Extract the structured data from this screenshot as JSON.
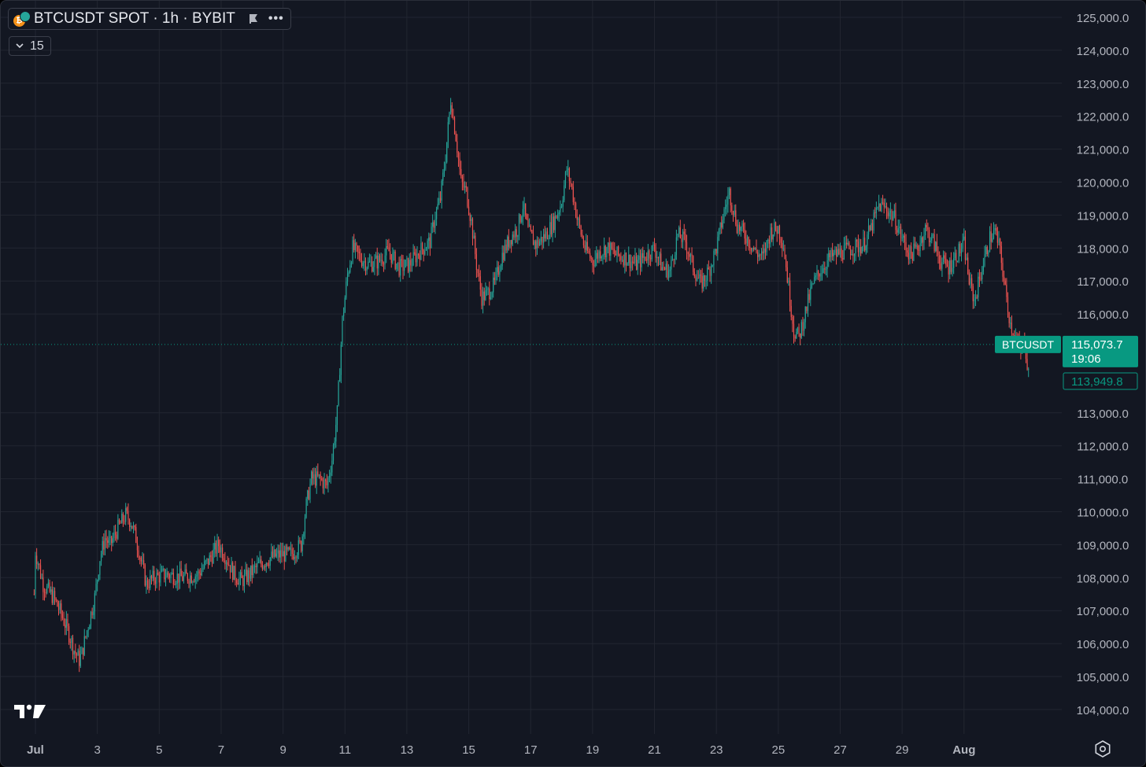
{
  "header": {
    "symbol_title": "BTCUSDT SPOT · 1h · BYBIT",
    "collapse_count": "15"
  },
  "price_tags": {
    "symbol": "BTCUSDT",
    "last_price": "115,073.7",
    "countdown": "19:06",
    "low_price": "113,949.8"
  },
  "icons": [
    "btc-usdt-icon",
    "flag-icon",
    "more-icon",
    "chevron-down-icon",
    "tradingview-logo-icon",
    "settings-icon"
  ],
  "colors": {
    "background": "#131722",
    "up": "#26a69a",
    "down": "#ef5350",
    "grid": "#222631",
    "axis_text": "#b2b5be",
    "last_price_tag": "#089981"
  },
  "chart_data": {
    "type": "candlestick",
    "timeframe": "1h",
    "y_axis": {
      "ticks": [
        "125,000.0",
        "124,000.0",
        "123,000.0",
        "122,000.0",
        "121,000.0",
        "120,000.0",
        "119,000.0",
        "118,000.0",
        "117,000.0",
        "116,000.0",
        "113,000.0",
        "112,000.0",
        "111,000.0",
        "110,000.0",
        "109,000.0",
        "108,000.0",
        "107,000.0",
        "106,000.0",
        "105,000.0",
        "104,000.0"
      ],
      "ylim": [
        103400,
        125300
      ],
      "position": "right"
    },
    "x_axis": {
      "ticks": [
        "Jul",
        "3",
        "5",
        "7",
        "9",
        "11",
        "13",
        "15",
        "17",
        "19",
        "21",
        "23",
        "25",
        "27",
        "29",
        "Aug"
      ],
      "xlim": [
        "2025-07-01T00:00",
        "2025-08-02T04:00"
      ]
    },
    "last_price": 115073.7,
    "low_marker": 113949.8,
    "grid": true,
    "path": [
      [
        "2025-06-30T23:00",
        107500
      ],
      [
        "2025-07-01T00:00",
        108800
      ],
      [
        "2025-07-01T06:00",
        107800
      ],
      [
        "2025-07-01T14:00",
        107400
      ],
      [
        "2025-07-01T20:00",
        106900
      ],
      [
        "2025-07-02T02:00",
        106300
      ],
      [
        "2025-07-02T06:00",
        105800
      ],
      [
        "2025-07-02T10:00",
        105500
      ],
      [
        "2025-07-02T12:00",
        105700
      ],
      [
        "2025-07-02T16:00",
        106400
      ],
      [
        "2025-07-02T22:00",
        107400
      ],
      [
        "2025-07-03T02:00",
        108600
      ],
      [
        "2025-07-03T06:00",
        109200
      ],
      [
        "2025-07-03T10:00",
        109000
      ],
      [
        "2025-07-03T16:00",
        109500
      ],
      [
        "2025-07-03T22:00",
        109900
      ],
      [
        "2025-07-04T02:00",
        109700
      ],
      [
        "2025-07-04T06:00",
        109200
      ],
      [
        "2025-07-04T10:00",
        108500
      ],
      [
        "2025-07-04T14:00",
        107800
      ],
      [
        "2025-07-04T20:00",
        108000
      ],
      [
        "2025-07-05T06:00",
        108100
      ],
      [
        "2025-07-05T18:00",
        108000
      ],
      [
        "2025-07-06T06:00",
        108100
      ],
      [
        "2025-07-06T14:00",
        108500
      ],
      [
        "2025-07-06T22:00",
        109000
      ],
      [
        "2025-07-07T04:00",
        108600
      ],
      [
        "2025-07-07T10:00",
        108100
      ],
      [
        "2025-07-07T16:00",
        107900
      ],
      [
        "2025-07-07T22:00",
        108100
      ],
      [
        "2025-07-08T06:00",
        108400
      ],
      [
        "2025-07-08T14:00",
        108600
      ],
      [
        "2025-07-08T22:00",
        108700
      ],
      [
        "2025-07-09T06:00",
        108700
      ],
      [
        "2025-07-09T14:00",
        109000
      ],
      [
        "2025-07-09T18:00",
        110200
      ],
      [
        "2025-07-09T22:00",
        111000
      ],
      [
        "2025-07-10T04:00",
        111000
      ],
      [
        "2025-07-10T10:00",
        110800
      ],
      [
        "2025-07-10T14:00",
        111600
      ],
      [
        "2025-07-10T18:00",
        113000
      ],
      [
        "2025-07-10T22:00",
        115800
      ],
      [
        "2025-07-11T02:00",
        117200
      ],
      [
        "2025-07-11T06:00",
        118000
      ],
      [
        "2025-07-11T12:00",
        117700
      ],
      [
        "2025-07-11T18:00",
        117500
      ],
      [
        "2025-07-12T02:00",
        117600
      ],
      [
        "2025-07-12T10:00",
        117900
      ],
      [
        "2025-07-12T18:00",
        117400
      ],
      [
        "2025-07-13T02:00",
        117500
      ],
      [
        "2025-07-13T10:00",
        117900
      ],
      [
        "2025-07-13T18:00",
        118200
      ],
      [
        "2025-07-13T22:00",
        119000
      ],
      [
        "2025-07-14T02:00",
        119500
      ],
      [
        "2025-07-14T06:00",
        120800
      ],
      [
        "2025-07-14T10:00",
        122500
      ],
      [
        "2025-07-14T14:00",
        121400
      ],
      [
        "2025-07-14T18:00",
        120000
      ],
      [
        "2025-07-14T22:00",
        119700
      ],
      [
        "2025-07-15T02:00",
        118800
      ],
      [
        "2025-07-15T06:00",
        117500
      ],
      [
        "2025-07-15T10:00",
        116500
      ],
      [
        "2025-07-15T14:00",
        116600
      ],
      [
        "2025-07-15T20:00",
        116900
      ],
      [
        "2025-07-16T02:00",
        117800
      ],
      [
        "2025-07-16T08:00",
        118300
      ],
      [
        "2025-07-16T14:00",
        118600
      ],
      [
        "2025-07-16T18:00",
        119300
      ],
      [
        "2025-07-16T22:00",
        118500
      ],
      [
        "2025-07-17T04:00",
        118100
      ],
      [
        "2025-07-17T12:00",
        118400
      ],
      [
        "2025-07-17T18:00",
        118800
      ],
      [
        "2025-07-18T00:00",
        119400
      ],
      [
        "2025-07-18T04:00",
        120400
      ],
      [
        "2025-07-18T08:00",
        119800
      ],
      [
        "2025-07-18T12:00",
        118900
      ],
      [
        "2025-07-18T18:00",
        118000
      ],
      [
        "2025-07-19T00:00",
        117600
      ],
      [
        "2025-07-19T06:00",
        117900
      ],
      [
        "2025-07-19T12:00",
        118000
      ],
      [
        "2025-07-19T18:00",
        117800
      ],
      [
        "2025-07-20T02:00",
        117700
      ],
      [
        "2025-07-20T10:00",
        117500
      ],
      [
        "2025-07-20T18:00",
        117800
      ],
      [
        "2025-07-21T00:00",
        118000
      ],
      [
        "2025-07-21T06:00",
        117400
      ],
      [
        "2025-07-21T12:00",
        117300
      ],
      [
        "2025-07-21T18:00",
        118400
      ],
      [
        "2025-07-22T00:00",
        118200
      ],
      [
        "2025-07-22T06:00",
        117400
      ],
      [
        "2025-07-22T12:00",
        116900
      ],
      [
        "2025-07-22T18:00",
        117300
      ],
      [
        "2025-07-23T00:00",
        118000
      ],
      [
        "2025-07-23T06:00",
        119100
      ],
      [
        "2025-07-23T10:00",
        119700
      ],
      [
        "2025-07-23T16:00",
        118700
      ],
      [
        "2025-07-24T00:00",
        118300
      ],
      [
        "2025-07-24T06:00",
        117900
      ],
      [
        "2025-07-24T12:00",
        117700
      ],
      [
        "2025-07-24T18:00",
        118500
      ],
      [
        "2025-07-25T00:00",
        118600
      ],
      [
        "2025-07-25T04:00",
        118100
      ],
      [
        "2025-07-25T08:00",
        116800
      ],
      [
        "2025-07-25T12:00",
        115500
      ],
      [
        "2025-07-25T16:00",
        115300
      ],
      [
        "2025-07-25T20:00",
        115900
      ],
      [
        "2025-07-26T02:00",
        116800
      ],
      [
        "2025-07-26T08:00",
        117300
      ],
      [
        "2025-07-26T16:00",
        117700
      ],
      [
        "2025-07-27T02:00",
        117900
      ],
      [
        "2025-07-27T10:00",
        118000
      ],
      [
        "2025-07-27T18:00",
        118100
      ],
      [
        "2025-07-28T00:00",
        118600
      ],
      [
        "2025-07-28T06:00",
        119300
      ],
      [
        "2025-07-28T12:00",
        119200
      ],
      [
        "2025-07-28T18:00",
        118900
      ],
      [
        "2025-07-29T00:00",
        118300
      ],
      [
        "2025-07-29T06:00",
        117800
      ],
      [
        "2025-07-29T12:00",
        118000
      ],
      [
        "2025-07-29T18:00",
        118600
      ],
      [
        "2025-07-30T00:00",
        118200
      ],
      [
        "2025-07-30T06:00",
        117600
      ],
      [
        "2025-07-30T12:00",
        117400
      ],
      [
        "2025-07-30T18:00",
        117800
      ],
      [
        "2025-07-31T00:00",
        118100
      ],
      [
        "2025-07-31T04:00",
        117000
      ],
      [
        "2025-07-31T08:00",
        116400
      ],
      [
        "2025-07-31T14:00",
        117400
      ],
      [
        "2025-07-31T20:00",
        118300
      ],
      [
        "2025-08-01T00:00",
        118500
      ],
      [
        "2025-08-01T04:00",
        117900
      ],
      [
        "2025-08-01T08:00",
        116700
      ],
      [
        "2025-08-01T12:00",
        115700
      ],
      [
        "2025-08-01T16:00",
        115300
      ],
      [
        "2025-08-01T20:00",
        114800
      ],
      [
        "2025-08-01T23:00",
        115200
      ],
      [
        "2025-08-02T01:00",
        114500
      ],
      [
        "2025-08-02T03:00",
        113950
      ]
    ]
  }
}
